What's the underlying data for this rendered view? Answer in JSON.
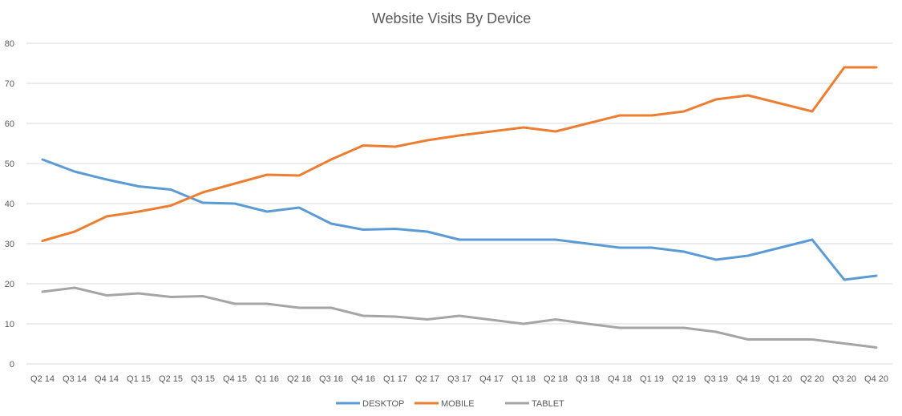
{
  "chart_data": {
    "type": "line",
    "title": "Website Visits By Device",
    "xlabel": "",
    "ylabel": "",
    "ylim": [
      0,
      80
    ],
    "yticks": [
      0,
      10,
      20,
      30,
      40,
      50,
      60,
      70,
      80
    ],
    "grid": true,
    "legend_position": "bottom",
    "categories": [
      "Q2 14",
      "Q3 14",
      "Q4 14",
      "Q1 15",
      "Q2 15",
      "Q3 15",
      "Q4 15",
      "Q1 16",
      "Q2 16",
      "Q3 16",
      "Q4 16",
      "Q1 17",
      "Q2 17",
      "Q3 17",
      "Q4 17",
      "Q1 18",
      "Q2 18",
      "Q3 18",
      "Q4 18",
      "Q1 19",
      "Q2 19",
      "Q3 19",
      "Q4 19",
      "Q1 20",
      "Q2 20",
      "Q3 20",
      "Q4 20"
    ],
    "series": [
      {
        "name": "DESKTOP",
        "color": "#5b9bd5",
        "values": [
          51,
          48,
          46,
          44.3,
          43.5,
          40.2,
          40,
          38,
          39,
          35,
          33.5,
          33.7,
          33,
          31,
          31,
          31,
          31,
          30,
          29,
          29,
          28,
          26,
          27,
          29,
          31,
          21,
          22
        ]
      },
      {
        "name": "MOBILE",
        "color": "#ed7d31",
        "values": [
          30.7,
          33,
          36.8,
          38,
          39.5,
          42.8,
          45,
          47.2,
          47,
          51,
          54.5,
          54.2,
          55.8,
          57,
          58,
          59,
          58,
          60,
          62,
          62,
          63,
          66,
          67,
          65,
          63,
          74,
          74
        ]
      },
      {
        "name": "TABLET",
        "color": "#a5a5a5",
        "values": [
          18,
          19,
          17.1,
          17.6,
          16.7,
          16.9,
          15,
          15,
          14,
          14,
          12,
          11.8,
          11.1,
          12,
          11,
          10,
          11.1,
          10,
          9,
          9,
          9,
          8,
          6.1,
          6.1,
          6.1,
          5.1,
          4.1
        ]
      }
    ]
  }
}
